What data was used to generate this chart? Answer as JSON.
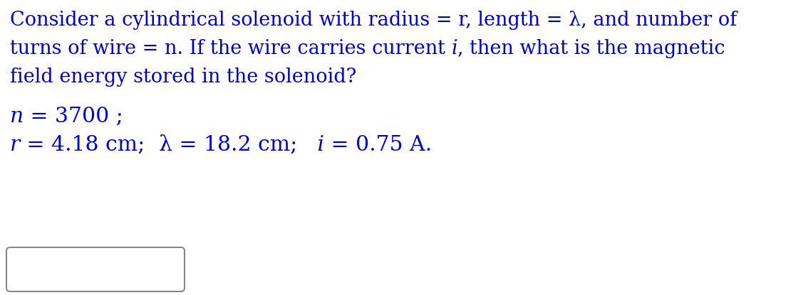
{
  "bg_color": "#ffffff",
  "text_color": "#0000cc",
  "line1": "Consider a cylindrical solenoid with radius = r, length = λ, and number of",
  "line2_pre": "turns of wire = n. If the wire carries current ",
  "line2_italic": "i",
  "line2_post": ", then what is the magnetic",
  "line3": "field energy stored in the solenoid?",
  "line4_italic": "n",
  "line4_rest": " = 3700 ;",
  "line5_italic_r": "r",
  "line5_rest1": " = 4.18 cm;",
  "line5_lambda": "  λ = 18.2 cm;",
  "line5_italic_i": "   i",
  "line5_rest2": " = 0.75 A.",
  "font_size": 19.5,
  "font_size2": 21.5
}
